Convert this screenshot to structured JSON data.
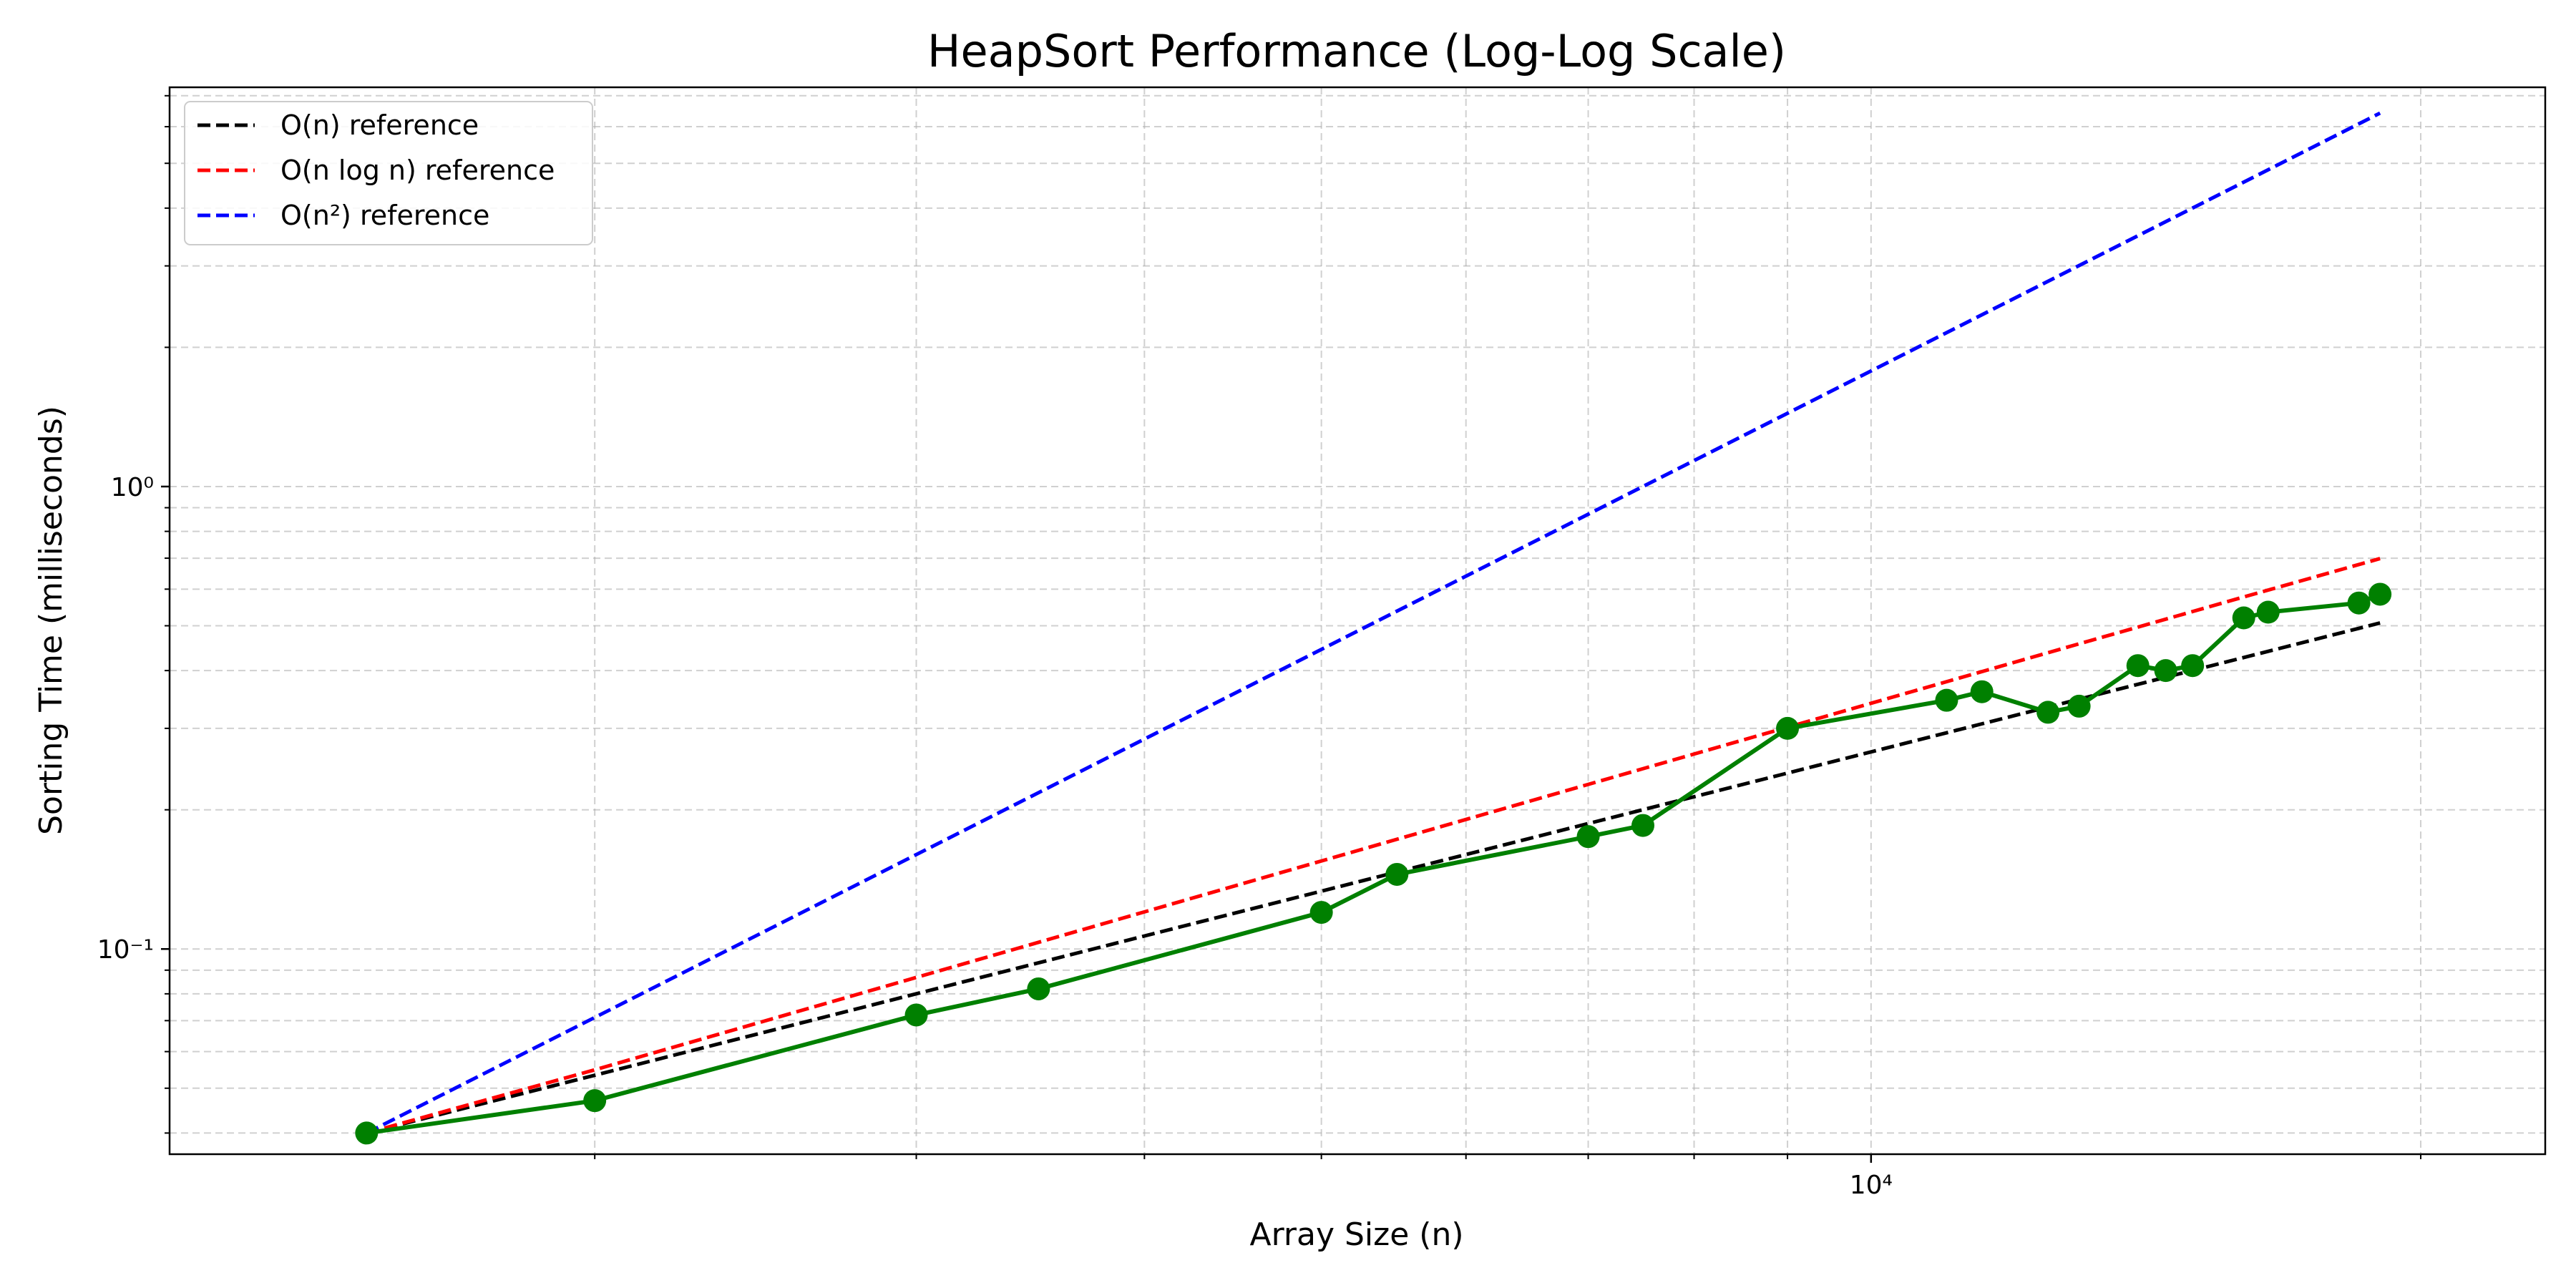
{
  "chart_data": {
    "type": "line",
    "title": "HeapSort Performance (Log-Log Scale)",
    "xlabel": "Array Size (n)",
    "ylabel": "Sorting Time (milliseconds)",
    "x_scale": "log",
    "y_scale": "log",
    "xlim": [
      1170,
      23400
    ],
    "ylim": [
      0.036,
      7.3
    ],
    "x_ticks": [
      {
        "value": 10000,
        "label": "10⁴"
      }
    ],
    "y_ticks": [
      {
        "value": 0.1,
        "label": "10⁻¹"
      },
      {
        "value": 1,
        "label": "10⁰"
      }
    ],
    "grid": true,
    "legend_position": "top-left",
    "series": [
      {
        "name": "O(n) reference",
        "color": "#000000",
        "style": "dashed",
        "x": [
          1500,
          19000
        ],
        "y": [
          0.04,
          0.507
        ]
      },
      {
        "name": "O(n log n) reference",
        "color": "#ff0000",
        "style": "dashed",
        "x": [
          1500,
          2000,
          3000,
          4000,
          5000,
          6000,
          8000,
          10000,
          13000,
          16000,
          19000
        ],
        "y": [
          0.04,
          0.0548,
          0.0868,
          0.1203,
          0.155,
          0.1906,
          0.264,
          0.3399,
          0.457,
          0.5771,
          0.6987
        ]
      },
      {
        "name": "O(n²) reference",
        "color": "#0000ff",
        "style": "dashed",
        "x": [
          1500,
          19000
        ],
        "y": [
          0.04,
          6.42
        ]
      },
      {
        "name": "",
        "color": "#008000",
        "style": "solid-markers",
        "x": [
          1500,
          2000,
          3000,
          3500,
          5000,
          5500,
          7000,
          7500,
          9000,
          11000,
          11500,
          12500,
          13000,
          14000,
          14500,
          15000,
          16000,
          16500,
          18500,
          19000
        ],
        "y": [
          0.04,
          0.047,
          0.072,
          0.082,
          0.12,
          0.145,
          0.175,
          0.185,
          0.3,
          0.345,
          0.36,
          0.325,
          0.335,
          0.41,
          0.4,
          0.41,
          0.52,
          0.535,
          0.56,
          0.585
        ]
      }
    ]
  }
}
